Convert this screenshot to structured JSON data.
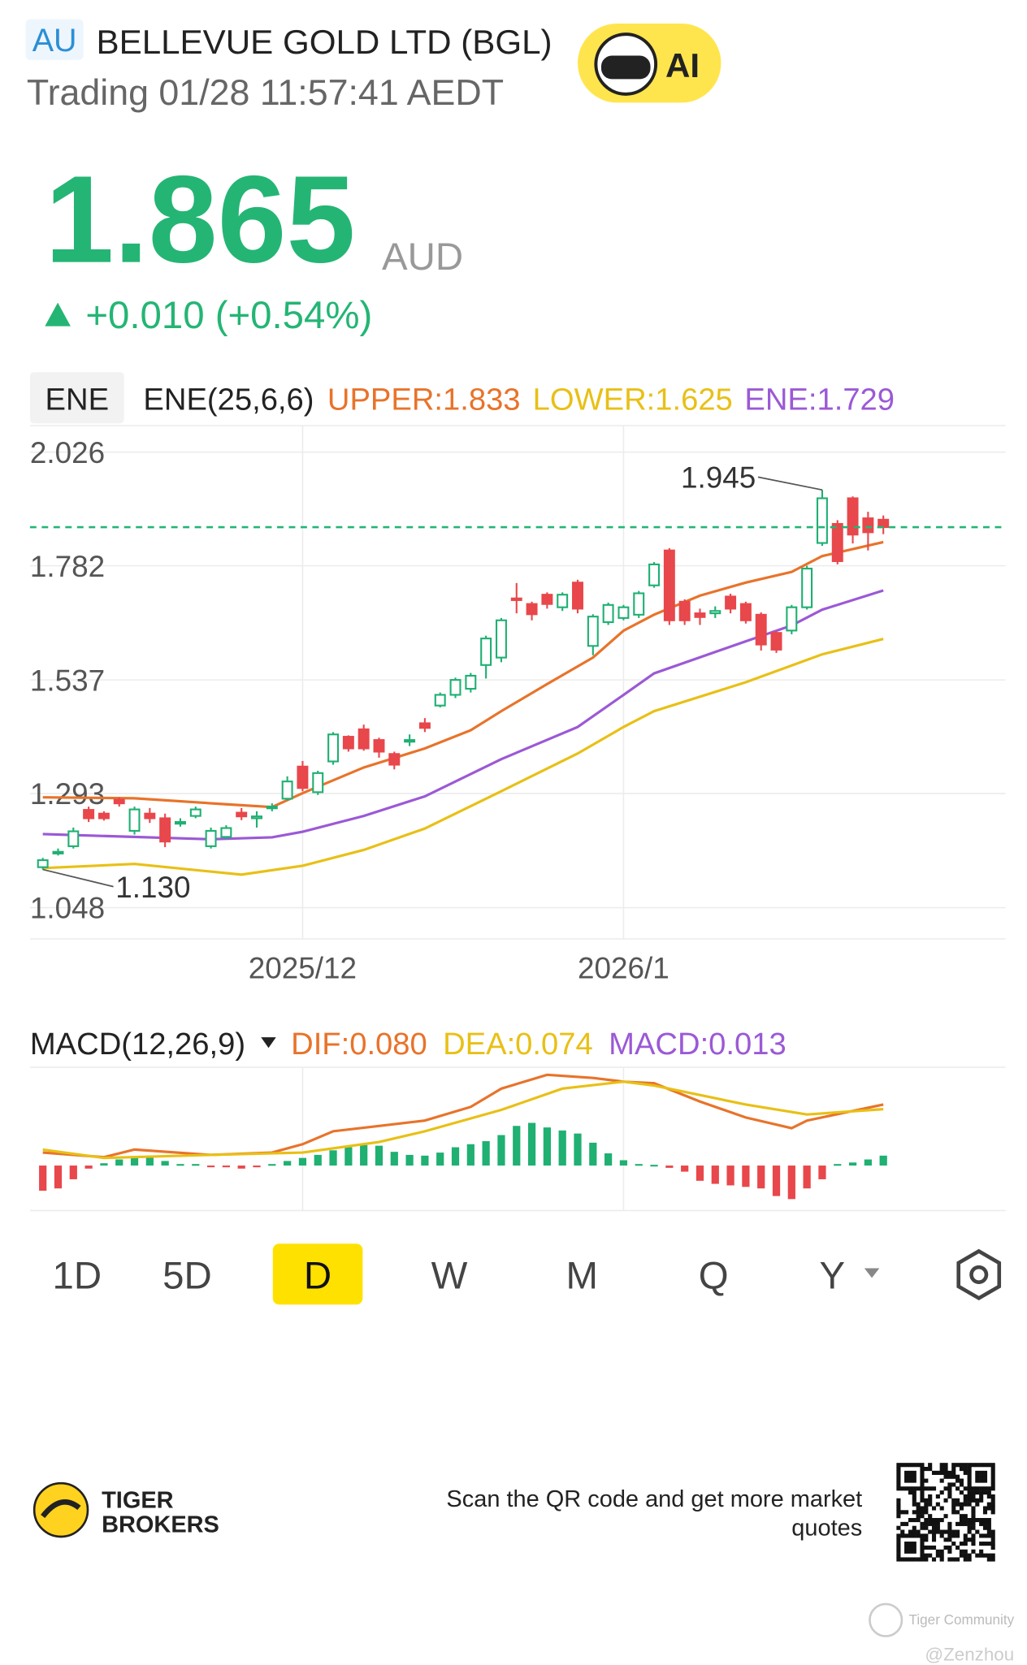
{
  "header": {
    "exchange": "AU",
    "name": "BELLEVUE GOLD LTD (BGL)",
    "status": "Trading 01/28 11:57:41 AEDT",
    "ai": "AI",
    "price": "1.865",
    "currency": "AUD",
    "change": "+0.010 (+0.54%)"
  },
  "chart_data": [
    {
      "type": "candlestick",
      "tab": "ENE",
      "indicator": "ENE(25,6,6)",
      "candles": {
        "open": [
          1.135,
          1.165,
          1.18,
          1.258,
          1.25,
          1.28,
          1.213,
          1.25,
          1.24,
          1.23,
          1.245,
          1.18,
          1.2,
          1.252,
          1.24,
          1.262,
          1.282,
          1.351,
          1.296,
          1.362,
          1.415,
          1.431,
          1.408,
          1.378,
          1.405,
          1.444,
          1.482,
          1.505,
          1.518,
          1.569,
          1.585,
          1.712,
          1.7,
          1.72,
          1.693,
          1.746,
          1.61,
          1.661,
          1.67,
          1.677,
          1.74,
          1.815,
          1.705,
          1.68,
          1.68,
          1.716,
          1.7,
          1.677,
          1.638,
          1.643,
          1.693,
          1.831,
          1.872,
          1.927,
          1.884,
          1.881
        ],
        "high": [
          1.155,
          1.175,
          1.22,
          1.265,
          1.255,
          1.285,
          1.265,
          1.262,
          1.25,
          1.24,
          1.265,
          1.22,
          1.225,
          1.262,
          1.255,
          1.272,
          1.33,
          1.363,
          1.342,
          1.425,
          1.418,
          1.441,
          1.413,
          1.383,
          1.42,
          1.455,
          1.51,
          1.542,
          1.552,
          1.632,
          1.67,
          1.745,
          1.705,
          1.725,
          1.725,
          1.752,
          1.678,
          1.703,
          1.698,
          1.728,
          1.79,
          1.82,
          1.71,
          1.69,
          1.695,
          1.722,
          1.705,
          1.682,
          1.642,
          1.698,
          1.782,
          1.945,
          1.88,
          1.931,
          1.898,
          1.89
        ],
        "low": [
          1.13,
          1.16,
          1.175,
          1.232,
          1.235,
          1.265,
          1.205,
          1.23,
          1.178,
          1.222,
          1.24,
          1.175,
          1.195,
          1.236,
          1.22,
          1.255,
          1.278,
          1.298,
          1.29,
          1.355,
          1.383,
          1.385,
          1.37,
          1.345,
          1.395,
          1.425,
          1.478,
          1.498,
          1.51,
          1.54,
          1.575,
          1.68,
          1.665,
          1.69,
          1.685,
          1.68,
          1.59,
          1.655,
          1.665,
          1.67,
          1.735,
          1.655,
          1.655,
          1.655,
          1.67,
          1.68,
          1.658,
          1.6,
          1.595,
          1.635,
          1.688,
          1.825,
          1.785,
          1.83,
          1.815,
          1.85
        ],
        "close": [
          1.15,
          1.168,
          1.212,
          1.24,
          1.24,
          1.272,
          1.259,
          1.24,
          1.19,
          1.232,
          1.259,
          1.213,
          1.219,
          1.244,
          1.244,
          1.265,
          1.319,
          1.305,
          1.337,
          1.42,
          1.39,
          1.39,
          1.383,
          1.355,
          1.408,
          1.434,
          1.505,
          1.537,
          1.546,
          1.626,
          1.665,
          1.71,
          1.678,
          1.7,
          1.72,
          1.69,
          1.673,
          1.698,
          1.693,
          1.723,
          1.785,
          1.665,
          1.665,
          1.672,
          1.685,
          1.69,
          1.665,
          1.613,
          1.602,
          1.693,
          1.776,
          1.927,
          1.792,
          1.849,
          1.854,
          1.865
        ]
      },
      "up_color": "#1fb072",
      "down_color": "#e8474b",
      "series": [
        {
          "name": "UPPER:1.833",
          "color": "#e8732a",
          "x": [
            0,
            6,
            12,
            15,
            17,
            21,
            25,
            28,
            30,
            33,
            36,
            38,
            40,
            43,
            46,
            49,
            51,
            55
          ],
          "values": [
            1.285,
            1.283,
            1.27,
            1.264,
            1.294,
            1.349,
            1.39,
            1.429,
            1.47,
            1.528,
            1.585,
            1.643,
            1.677,
            1.718,
            1.746,
            1.769,
            1.803,
            1.833
          ]
        },
        {
          "name": "LOWER:1.625",
          "color": "#e8c016",
          "x": [
            0,
            6,
            13,
            17,
            21,
            25,
            30,
            35,
            38,
            40,
            46,
            51,
            55
          ],
          "values": [
            1.133,
            1.142,
            1.119,
            1.138,
            1.172,
            1.218,
            1.298,
            1.379,
            1.436,
            1.47,
            1.532,
            1.592,
            1.625
          ]
        },
        {
          "name": "ENE:1.729",
          "color": "#9b59d6",
          "x": [
            0,
            11,
            15,
            17,
            21,
            25,
            30,
            35,
            38,
            40,
            46,
            49,
            51,
            55
          ],
          "values": [
            1.206,
            1.195,
            1.199,
            1.211,
            1.245,
            1.287,
            1.367,
            1.436,
            1.505,
            1.551,
            1.62,
            1.654,
            1.688,
            1.729
          ]
        }
      ],
      "annotations": [
        {
          "index": 51,
          "label": "1.945"
        },
        {
          "index": 0,
          "label": "1.130"
        }
      ],
      "last_price": 1.865,
      "last_price_color": "#24b574",
      "xlim": [
        -0.84,
        63
      ],
      "xticks": [
        {
          "value": 17,
          "label": "2025/12"
        },
        {
          "value": 38,
          "label": "2026/1"
        }
      ],
      "ylim": [
        0.981,
        2.083
      ],
      "yticks": [
        2.026,
        1.782,
        1.537,
        1.293,
        1.048
      ],
      "grid": true
    },
    {
      "type": "macd",
      "title": "MACD(12,26,9)",
      "series": [
        {
          "name": "DIF:0.080",
          "color": "#e8732a",
          "x": [
            0,
            4,
            6,
            11,
            15,
            17,
            19,
            22,
            25,
            28,
            30,
            33,
            36,
            38,
            40,
            43,
            46,
            49,
            50,
            55
          ],
          "values": [
            0.017,
            0.011,
            0.021,
            0.014,
            0.017,
            0.028,
            0.045,
            0.052,
            0.059,
            0.077,
            0.101,
            0.119,
            0.115,
            0.11,
            0.108,
            0.084,
            0.063,
            0.049,
            0.059,
            0.08
          ]
        },
        {
          "name": "DEA:0.074",
          "color": "#e8c016",
          "x": [
            0,
            4,
            11,
            17,
            22,
            25,
            30,
            34,
            38,
            40,
            46,
            50,
            55
          ],
          "values": [
            0.021,
            0.01,
            0.014,
            0.017,
            0.031,
            0.045,
            0.073,
            0.101,
            0.11,
            0.105,
            0.08,
            0.067,
            0.074
          ]
        }
      ],
      "histogram": {
        "name": "MACD:0.013",
        "color": "#9b59d6",
        "up_color": "#1fb072",
        "down_color": "#e8474b",
        "values": [
          -0.033,
          -0.03,
          -0.018,
          -0.004,
          0.003,
          0.008,
          0.01,
          0.011,
          0.006,
          0.002,
          0.002,
          -0.002,
          -0.001,
          -0.004,
          -0.002,
          0.002,
          0.006,
          0.01,
          0.014,
          0.02,
          0.024,
          0.027,
          0.026,
          0.018,
          0.014,
          0.013,
          0.017,
          0.024,
          0.028,
          0.032,
          0.04,
          0.052,
          0.056,
          0.05,
          0.046,
          0.042,
          0.03,
          0.016,
          0.007,
          0.002,
          0.001,
          -0.003,
          -0.008,
          -0.02,
          -0.024,
          -0.026,
          -0.028,
          -0.03,
          -0.04,
          -0.044,
          -0.03,
          -0.018,
          0.002,
          0.004,
          0.008,
          0.013
        ]
      },
      "xlim": [
        -0.84,
        63
      ],
      "xticks": [
        {
          "value": 17,
          "label": "2025/12"
        },
        {
          "value": 38,
          "label": "2026/1"
        }
      ],
      "ylim": [
        -0.059,
        0.129
      ]
    }
  ],
  "periods": {
    "items": [
      "1D",
      "5D",
      "D",
      "W",
      "M",
      "Q",
      "Y"
    ],
    "selected": 2
  },
  "footer": {
    "brand": [
      "TIGER",
      "BROKERS"
    ],
    "scan": [
      "Scan the QR code and get more market",
      "quotes"
    ],
    "community": "Tiger Community",
    "user": "@Zenzhou"
  }
}
